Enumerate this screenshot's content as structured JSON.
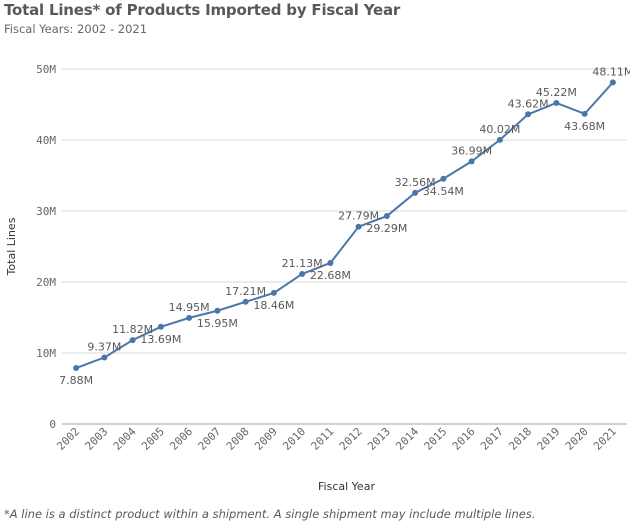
{
  "header": {
    "title": "Total Lines* of Products Imported by Fiscal Year",
    "subtitle": "Fiscal Years: 2002 - 2021"
  },
  "footnote": "*A line is a distinct product within a shipment. A single shipment may include multiple lines.",
  "colors": {
    "line": "#4a77a8",
    "grid": "#d9d9d9",
    "axis": "#a6a6a6",
    "text": "#595959"
  },
  "chart_data": {
    "type": "line",
    "xlabel": "Fiscal Year",
    "ylabel": "Total Lines",
    "ylim": [
      0,
      50000000
    ],
    "y_ticks": [
      0,
      10000000,
      20000000,
      30000000,
      40000000,
      50000000
    ],
    "y_tick_labels": [
      "0",
      "10M",
      "20M",
      "30M",
      "40M",
      "50M"
    ],
    "grid": true,
    "categories": [
      "2002",
      "2003",
      "2004",
      "2005",
      "2006",
      "2007",
      "2008",
      "2009",
      "2010",
      "2011",
      "2012",
      "2013",
      "2014",
      "2015",
      "2016",
      "2017",
      "2018",
      "2019",
      "2020",
      "2021"
    ],
    "series": [
      {
        "values": [
          7880000,
          9370000,
          11820000,
          13690000,
          14950000,
          15950000,
          17210000,
          18460000,
          21130000,
          22680000,
          27790000,
          29290000,
          32560000,
          34540000,
          36990000,
          40020000,
          43620000,
          45220000,
          43680000,
          48110000
        ],
        "data_labels": [
          "7.88M",
          "9.37M",
          "11.82M",
          "13.69M",
          "14.95M",
          "15.95M",
          "17.21M",
          "18.46M",
          "21.13M",
          "22.68M",
          "27.79M",
          "29.29M",
          "32.56M",
          "34.54M",
          "36.99M",
          "40.02M",
          "43.62M",
          "45.22M",
          "43.68M",
          "48.11M"
        ],
        "label_position": [
          "below",
          "above",
          "above",
          "below",
          "above",
          "below",
          "above",
          "below",
          "above",
          "below",
          "above",
          "below",
          "above",
          "below",
          "above",
          "above",
          "above",
          "above",
          "below",
          "above"
        ]
      }
    ]
  }
}
